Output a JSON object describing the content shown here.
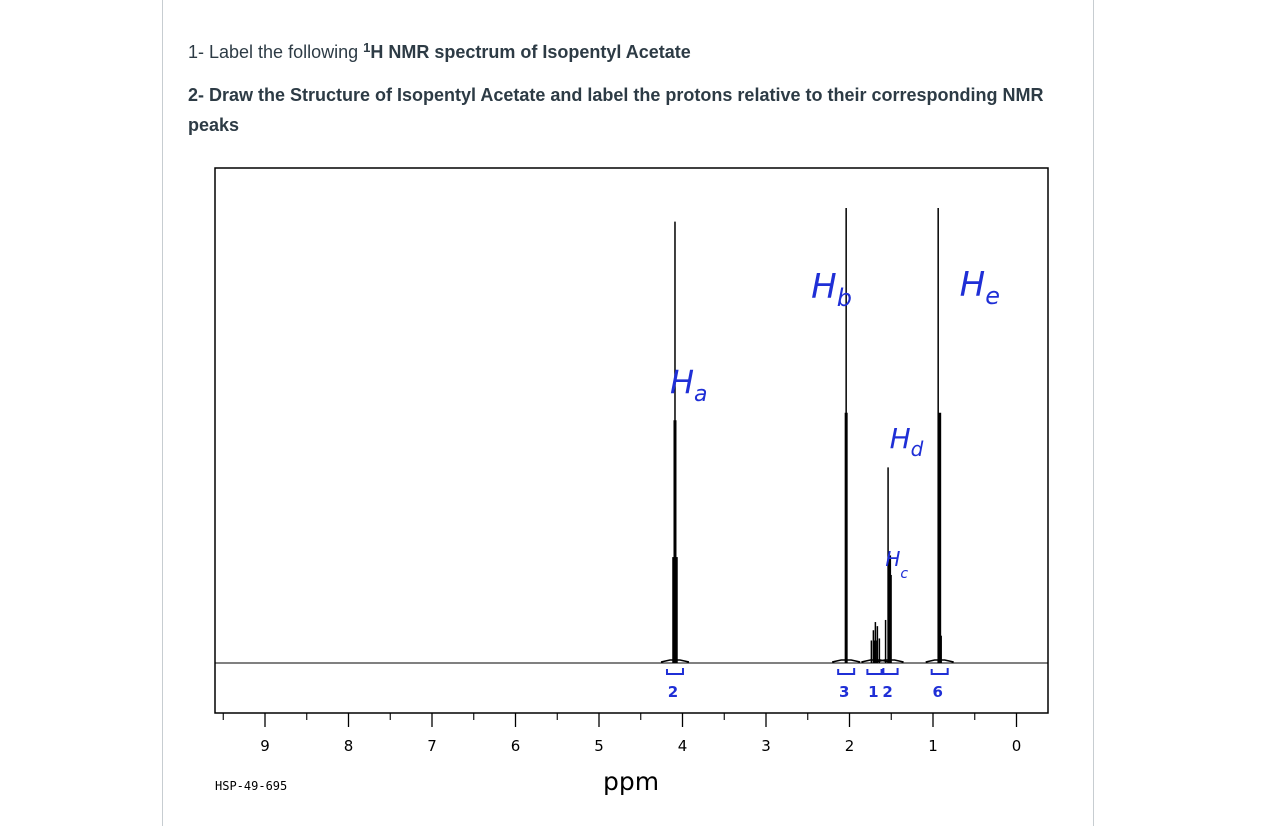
{
  "question1": {
    "prefix": "1- Label the following ",
    "superscript": "1",
    "nucleus_label": "H NMR  spectrum of Isopentyl Acetate"
  },
  "question2": {
    "text": "2- Draw the Structure of Isopentyl Acetate and label the protons relative to their corresponding NMR peaks"
  },
  "chart_data": {
    "type": "line",
    "title": "",
    "xlabel": "ppm",
    "ylabel": "",
    "xlim": [
      9.6,
      -0.4
    ],
    "x_reversed": true,
    "x_ticks": [
      9,
      8,
      7,
      6,
      5,
      4,
      3,
      2,
      1,
      0
    ],
    "grid": false,
    "code": "HSP-49-695",
    "peaks": [
      {
        "ppm": 4.09,
        "height": 0.97,
        "multiplicity": "triplet",
        "annotation": "Ha",
        "integration": "2"
      },
      {
        "ppm": 2.04,
        "height": 1.0,
        "multiplicity": "singlet",
        "annotation": "Hb",
        "integration": "3"
      },
      {
        "ppm": 1.69,
        "height": 0.09,
        "multiplicity": "multiplet",
        "annotation": "Hc",
        "integration": "1"
      },
      {
        "ppm": 1.52,
        "height": 0.43,
        "multiplicity": "quartet",
        "annotation": "Hd",
        "integration": "2"
      },
      {
        "ppm": 0.92,
        "height": 1.0,
        "multiplicity": "doublet",
        "annotation": "He",
        "integration": "6"
      }
    ]
  },
  "colors": {
    "annotation": "#1f2fd6",
    "spectrum": "#000000",
    "text": "#2d3b45",
    "page_rule": "#c7cdd1"
  }
}
